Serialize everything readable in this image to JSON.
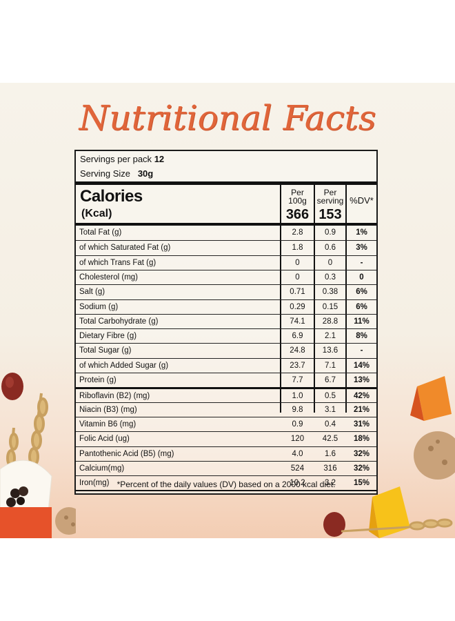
{
  "title": "Nutritional Facts",
  "servings_per_pack_label": "Servings per pack",
  "servings_per_pack_value": "12",
  "serving_size_label": "Serving Size",
  "serving_size_value": "30g",
  "calories_label": "Calories",
  "kcal_label": "(Kcal)",
  "col1_header": [
    "Per",
    "100g"
  ],
  "col2_header": [
    "Per",
    "serving"
  ],
  "col3_header": "%DV*",
  "calories_per_100g": "366",
  "calories_per_serving": "153",
  "rows": [
    {
      "name": "Total Fat (g)",
      "per100": "2.8",
      "perserv": "0.9",
      "dv": "1%"
    },
    {
      "name": " of which Saturated Fat (g)",
      "per100": "1.8",
      "perserv": "0.6",
      "dv": "3%"
    },
    {
      "name": " of which Trans Fat (g)",
      "per100": "0",
      "perserv": "0",
      "dv": "-"
    },
    {
      "name": "Cholesterol (mg)",
      "per100": "0",
      "perserv": "0.3",
      "dv": "0"
    },
    {
      "name": "Salt (g)",
      "per100": "0.71",
      "perserv": "0.38",
      "dv": "6%"
    },
    {
      "name": "Sodium (g)",
      "per100": "0.29",
      "perserv": "0.15",
      "dv": "6%"
    },
    {
      "name": "Total Carbohydrate (g)",
      "per100": "74.1",
      "perserv": "28.8",
      "dv": "11%"
    },
    {
      "name": "Dietary Fibre (g)",
      "per100": "6.9",
      "perserv": "2.1",
      "dv": "8%"
    },
    {
      "name": "Total Sugar (g)",
      "per100": "24.8",
      "perserv": "13.6",
      "dv": "-"
    },
    {
      "name": " of which Added Sugar (g)",
      "per100": "23.7",
      "perserv": "7.1",
      "dv": "14%"
    },
    {
      "name": "Protein (g)",
      "per100": "7.7",
      "perserv": "6.7",
      "dv": "13%"
    },
    {
      "name": "Riboflavin (B2) (mg)",
      "per100": "1.0",
      "perserv": "0.5",
      "dv": "42%"
    },
    {
      "name": "Niacin (B3) (mg)",
      "per100": "9.8",
      "perserv": "3.1",
      "dv": "21%"
    },
    {
      "name": "Vitamin B6 (mg)",
      "per100": "0.9",
      "perserv": "0.4",
      "dv": "31%"
    },
    {
      "name": "Folic Acid (ug)",
      "per100": "120",
      "perserv": "42.5",
      "dv": "18%"
    },
    {
      "name": "Pantothenic Acid (B5) (mg)",
      "per100": "4.0",
      "perserv": "1.6",
      "dv": "32%"
    },
    {
      "name": "Calcium(mg)",
      "per100": "524",
      "perserv": "316",
      "dv": "32%"
    },
    {
      "name": "Iron(mg)",
      "per100": "10.2",
      "perserv": "3.2",
      "dv": "15%"
    }
  ],
  "footnote": "*Percent of the daily values (DV) based on a 2000 kcal diet.",
  "colors": {
    "title": "#e0653a",
    "text": "#111111"
  }
}
